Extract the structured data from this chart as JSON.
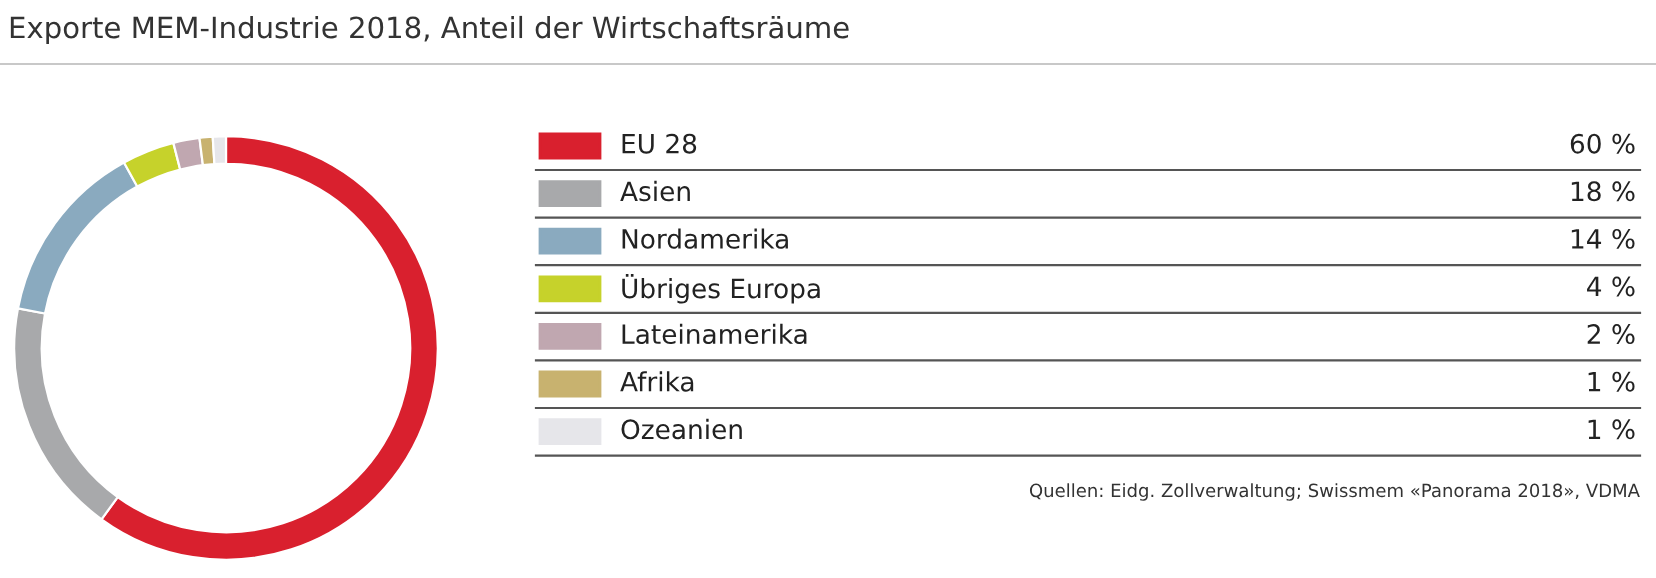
{
  "chart_data": {
    "type": "donut",
    "title": "Exporte MEM-Industrie 2018, Anteil der Wirtschaftsräume",
    "categories": [
      "EU 28",
      "Asien",
      "Nordamerika",
      "Übriges Europa",
      "Lateinamerika",
      "Afrika",
      "Ozeanien"
    ],
    "values": [
      60,
      18,
      14,
      4,
      2,
      1,
      1
    ],
    "colors": [
      "#d9202e",
      "#a8a9ab",
      "#8aaabf",
      "#c6d22b",
      "#c0a7b0",
      "#c8b26f",
      "#e6e6ea"
    ],
    "value_labels": [
      "60 %",
      "18 %",
      "14 %",
      "4 %",
      "2 %",
      "1 %",
      "1 %"
    ],
    "legend": "right",
    "annotations": [
      "Quellen: Eidg. Zollverwaltung; Swissmem «Panorama 2018», VDMA"
    ]
  }
}
